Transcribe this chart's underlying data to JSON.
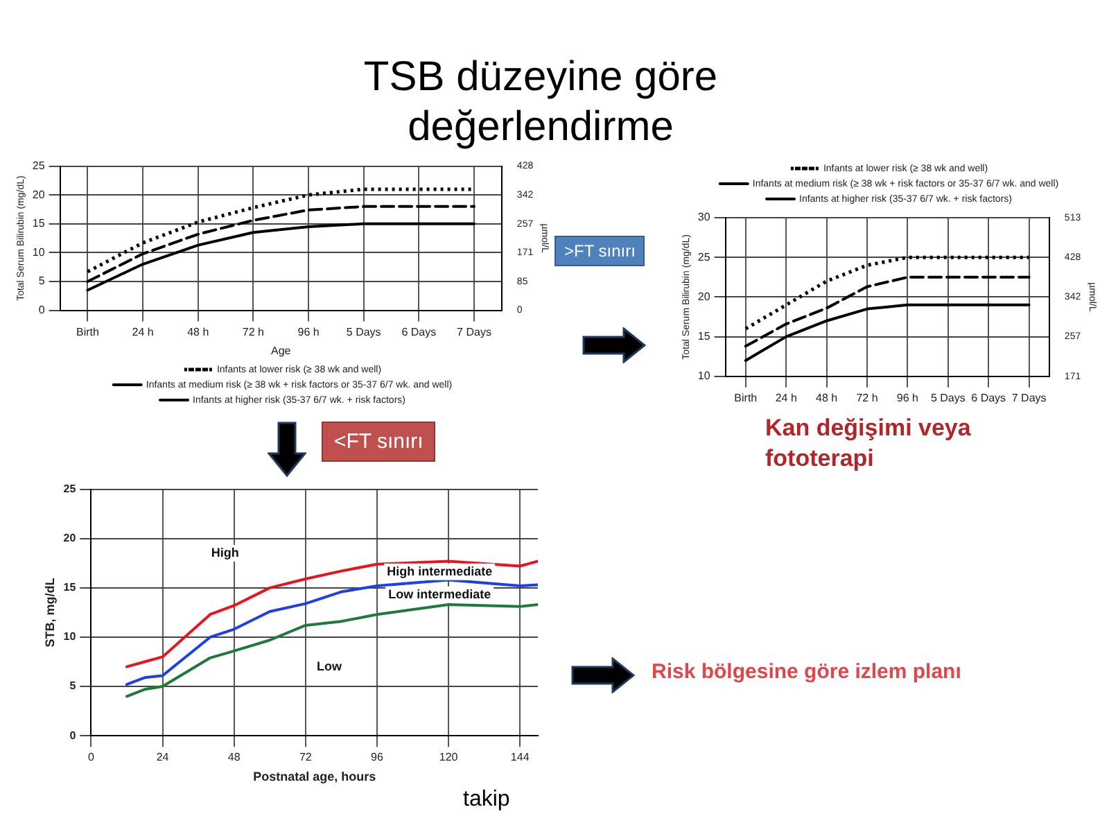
{
  "chart_data": [
    {
      "type": "line",
      "title": "TSB düzeyine göre değerlendirme",
      "xlabel": "Age",
      "ylabel": "Total Serum Bilirubin (mg/dL)",
      "y2label": "µmol/L",
      "annotations": [
        "<FT sınırı"
      ],
      "categories": [
        "Birth",
        "24 h",
        "48 h",
        "72 h",
        "96 h",
        "5 Days",
        "6 Days",
        "7 Days"
      ],
      "series": [
        {
          "name": "Infants at lower risk (≥ 38 wk and well)",
          "color": "#000000",
          "line_style": "dotted",
          "values": [
            6.7,
            11.7,
            15.3,
            17.8,
            20,
            21,
            21,
            21
          ]
        },
        {
          "name": "Infants at medium risk (≥ 38 wk + risk factors or 35-37 6/7 wk. and well)",
          "color": "#000000",
          "line_style": "dashed",
          "values": [
            5,
            9.8,
            13.2,
            15.6,
            17.4,
            18,
            18,
            18
          ]
        },
        {
          "name": "Infants at higher risk (35-37 6/7 wk. + risk factors)",
          "color": "#000000",
          "line_style": "solid",
          "values": [
            3.5,
            8,
            11.3,
            13.5,
            14.5,
            15,
            15,
            15
          ]
        }
      ],
      "ylim": [
        0,
        25
      ],
      "yticks": [
        0,
        5,
        10,
        15,
        20,
        25
      ],
      "y2lim": [
        0,
        428
      ],
      "y2ticks": [
        0,
        85,
        171,
        257,
        342,
        428
      ],
      "grid": true,
      "legend": "bottom",
      "marker": "none"
    },
    {
      "type": "line",
      "ylabel": "Total Serum Bilirubin (mg/dL)",
      "y2label": "µmol/L",
      "annotations": [
        ">FT sınırı",
        "Kan değişimi veya fototerapi"
      ],
      "categories": [
        "Birth",
        "24 h",
        "48 h",
        "72 h",
        "96 h",
        "5 Days",
        "6 Days",
        "7 Days"
      ],
      "series": [
        {
          "name": "Infants at lower risk (≥ 38 wk and well)",
          "color": "#000000",
          "line_style": "dotted",
          "values": [
            16,
            19,
            22,
            24,
            25,
            25,
            25,
            25
          ]
        },
        {
          "name": "Infants at medium risk (≥ 38 wk + risk factors or 35-37 6/7 wk. and well)",
          "color": "#000000",
          "line_style": "dashed",
          "values": [
            13.8,
            16.6,
            18.6,
            21.3,
            22.5,
            22.5,
            22.5,
            22.5
          ]
        },
        {
          "name": "Infants at higher risk (35-37 6/7 wk. + risk factors)",
          "color": "#000000",
          "line_style": "solid",
          "values": [
            12,
            15,
            17,
            18.5,
            19,
            19,
            19,
            19
          ]
        }
      ],
      "ylim": [
        10,
        30
      ],
      "yticks": [
        10,
        15,
        20,
        25,
        30
      ],
      "y2lim": [
        171,
        513
      ],
      "y2ticks": [
        171,
        257,
        342,
        428,
        513
      ],
      "grid": true,
      "legend": "top",
      "marker": "none"
    },
    {
      "type": "line",
      "xlabel": "Postnatal age, hours",
      "ylabel": "STB, mg/dL",
      "annotations": [
        "Risk bölgesine göre izlem planı",
        "takip",
        "High",
        "High intermediate",
        "Low intermediate",
        "Low"
      ],
      "x": [
        12,
        18,
        24,
        40,
        48,
        60,
        72,
        84,
        96,
        120,
        144,
        150
      ],
      "series": [
        {
          "color": "#e8141c",
          "values": [
            7,
            7.5,
            8,
            12.3,
            13.2,
            15,
            15.9,
            16.7,
            17.4,
            17.7,
            17.2,
            17.7
          ]
        },
        {
          "color": "#1c3fe8",
          "values": [
            5.2,
            5.9,
            6.1,
            10,
            10.8,
            12.6,
            13.4,
            14.6,
            15.2,
            15.8,
            15.2,
            15.3
          ]
        },
        {
          "color": "#1d7a3a",
          "values": [
            4,
            4.7,
            5,
            7.9,
            8.6,
            9.7,
            11.2,
            11.6,
            12.3,
            13.3,
            13.1,
            13.3
          ]
        }
      ],
      "xlim": [
        0,
        150
      ],
      "xticks": [
        0,
        24,
        48,
        72,
        96,
        120,
        144
      ],
      "ylim": [
        0,
        25
      ],
      "yticks": [
        0,
        5,
        10,
        15,
        20,
        25
      ],
      "grid": true,
      "marker": "none"
    }
  ]
}
